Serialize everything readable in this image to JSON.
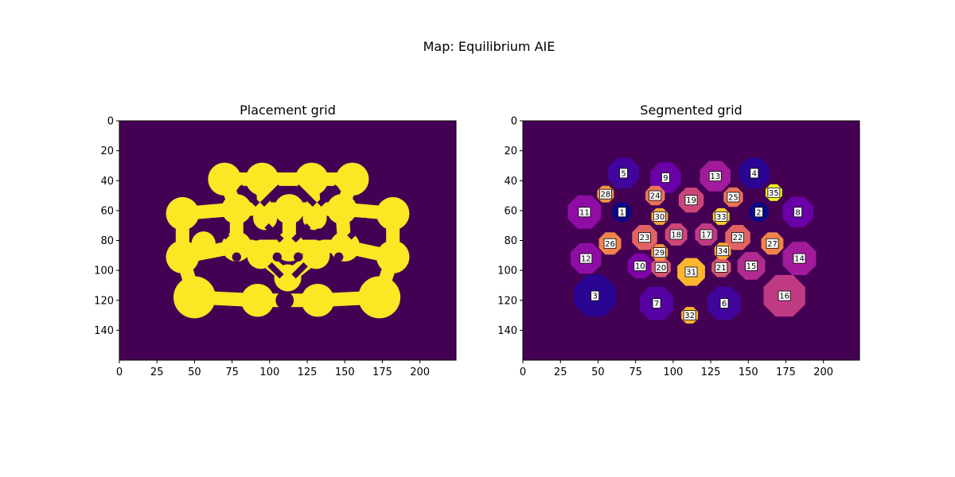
{
  "figure": {
    "suptitle": "Map: Equilibrium AIE"
  },
  "colors": {
    "background": "#440154",
    "placeable": "#fde725",
    "region_palette": [
      "#0d0887",
      "#2a0593",
      "#41049d",
      "#5601a4",
      "#6a00a8",
      "#7e03a8",
      "#8f0da4",
      "#a11b9b",
      "#b12a90",
      "#c03a83",
      "#cc4778",
      "#d6556d",
      "#e16462",
      "#ea7457",
      "#f2844b",
      "#f89540",
      "#fca636",
      "#feb72d",
      "#fccd25",
      "#f0f921"
    ]
  },
  "chart_data": [
    {
      "type": "heatmap",
      "title": "Placement grid",
      "xlabel": "",
      "ylabel": "",
      "grid_size": [
        224,
        160
      ],
      "xlim": [
        0,
        224
      ],
      "ylim": [
        160,
        0
      ],
      "xticks": [
        "0",
        "25",
        "50",
        "75",
        "100",
        "125",
        "150",
        "175",
        "200"
      ],
      "yticks": [
        "0",
        "20",
        "40",
        "60",
        "80",
        "100",
        "120",
        "140"
      ],
      "grid": false,
      "pathable_lobes_center_radius": [
        [
          70,
          39,
          11
        ],
        [
          95,
          39,
          11
        ],
        [
          128,
          39,
          11
        ],
        [
          155,
          39,
          11
        ],
        [
          42,
          62,
          11
        ],
        [
          78,
          59,
          10
        ],
        [
          97,
          65,
          8
        ],
        [
          113,
          59,
          10
        ],
        [
          130,
          65,
          8
        ],
        [
          148,
          59,
          10
        ],
        [
          182,
          62,
          11
        ],
        [
          42,
          91,
          11
        ],
        [
          56,
          82,
          8
        ],
        [
          78,
          84,
          10
        ],
        [
          94,
          90,
          9
        ],
        [
          113,
          84,
          10
        ],
        [
          131,
          90,
          9
        ],
        [
          150,
          84,
          10
        ],
        [
          182,
          91,
          11
        ],
        [
          50,
          118,
          14
        ],
        [
          92,
          120,
          11
        ],
        [
          132,
          120,
          11
        ],
        [
          173,
          118,
          14
        ],
        [
          112,
          105,
          9
        ]
      ],
      "holes_center_radius": [
        [
          91,
          76,
          4
        ],
        [
          133,
          76,
          4
        ],
        [
          78,
          91,
          3
        ],
        [
          146,
          91,
          3
        ],
        [
          105,
          91,
          3
        ],
        [
          119,
          91,
          3
        ],
        [
          110,
          120,
          6
        ]
      ]
    },
    {
      "type": "heatmap",
      "title": "Segmented grid",
      "xlabel": "",
      "ylabel": "",
      "grid_size": [
        224,
        160
      ],
      "xlim": [
        0,
        224
      ],
      "ylim": [
        160,
        0
      ],
      "xticks": [
        "0",
        "25",
        "50",
        "75",
        "100",
        "125",
        "150",
        "175",
        "200"
      ],
      "yticks": [
        "0",
        "20",
        "40",
        "60",
        "80",
        "100",
        "120",
        "140"
      ],
      "grid": false,
      "regions": [
        {
          "label": "1",
          "x": 66,
          "y": 61,
          "r": 7,
          "color": "#0d0887"
        },
        {
          "label": "2",
          "x": 157,
          "y": 61,
          "r": 7,
          "color": "#0d0887"
        },
        {
          "label": "3",
          "x": 48,
          "y": 117,
          "r": 15,
          "color": "#2a0593"
        },
        {
          "label": "4",
          "x": 154,
          "y": 35,
          "r": 11,
          "color": "#2a0593"
        },
        {
          "label": "5",
          "x": 67,
          "y": 35,
          "r": 11,
          "color": "#41049d"
        },
        {
          "label": "6",
          "x": 134,
          "y": 122,
          "r": 12,
          "color": "#41049d"
        },
        {
          "label": "7",
          "x": 89,
          "y": 122,
          "r": 12,
          "color": "#5601a4"
        },
        {
          "label": "8",
          "x": 183,
          "y": 61,
          "r": 11,
          "color": "#6a00a8"
        },
        {
          "label": "9",
          "x": 95,
          "y": 38,
          "r": 11,
          "color": "#6a00a8"
        },
        {
          "label": "10",
          "x": 78,
          "y": 97,
          "r": 9,
          "color": "#7e03a8"
        },
        {
          "label": "11",
          "x": 41,
          "y": 61,
          "r": 12,
          "color": "#8f0da4"
        },
        {
          "label": "12",
          "x": 42,
          "y": 92,
          "r": 11,
          "color": "#8f0da4"
        },
        {
          "label": "13",
          "x": 128,
          "y": 37,
          "r": 11,
          "color": "#a11b9b"
        },
        {
          "label": "14",
          "x": 184,
          "y": 92,
          "r": 12,
          "color": "#a11b9b"
        },
        {
          "label": "15",
          "x": 152,
          "y": 97,
          "r": 10,
          "color": "#b12a90"
        },
        {
          "label": "16",
          "x": 174,
          "y": 117,
          "r": 15,
          "color": "#c03a83"
        },
        {
          "label": "17",
          "x": 122,
          "y": 76,
          "r": 8,
          "color": "#c03a83"
        },
        {
          "label": "18",
          "x": 102,
          "y": 76,
          "r": 8,
          "color": "#cc4778"
        },
        {
          "label": "19",
          "x": 112,
          "y": 53,
          "r": 9,
          "color": "#cc4778"
        },
        {
          "label": "20",
          "x": 92,
          "y": 98,
          "r": 7,
          "color": "#d6556d"
        },
        {
          "label": "21",
          "x": 132,
          "y": 98,
          "r": 7,
          "color": "#d6556d"
        },
        {
          "label": "22",
          "x": 143,
          "y": 78,
          "r": 9,
          "color": "#e16462"
        },
        {
          "label": "23",
          "x": 81,
          "y": 78,
          "r": 9,
          "color": "#e16462"
        },
        {
          "label": "24",
          "x": 88,
          "y": 50,
          "r": 7,
          "color": "#ea7457"
        },
        {
          "label": "25",
          "x": 140,
          "y": 51,
          "r": 7,
          "color": "#ea7457"
        },
        {
          "label": "26",
          "x": 58,
          "y": 82,
          "r": 8,
          "color": "#f2844b"
        },
        {
          "label": "27",
          "x": 166,
          "y": 82,
          "r": 8,
          "color": "#f2844b"
        },
        {
          "label": "28",
          "x": 55,
          "y": 49,
          "r": 6,
          "color": "#f89540"
        },
        {
          "label": "29",
          "x": 91,
          "y": 88,
          "r": 6,
          "color": "#f89540"
        },
        {
          "label": "30",
          "x": 91,
          "y": 64,
          "r": 6,
          "color": "#fca636"
        },
        {
          "label": "31",
          "x": 112,
          "y": 101,
          "r": 10,
          "color": "#feb72d"
        },
        {
          "label": "32",
          "x": 111,
          "y": 130,
          "r": 6,
          "color": "#feb72d"
        },
        {
          "label": "33",
          "x": 132,
          "y": 64,
          "r": 6,
          "color": "#fccd25"
        },
        {
          "label": "34",
          "x": 133,
          "y": 87,
          "r": 6,
          "color": "#fca636"
        },
        {
          "label": "35",
          "x": 167,
          "y": 48,
          "r": 6,
          "color": "#f0f921"
        }
      ]
    }
  ]
}
